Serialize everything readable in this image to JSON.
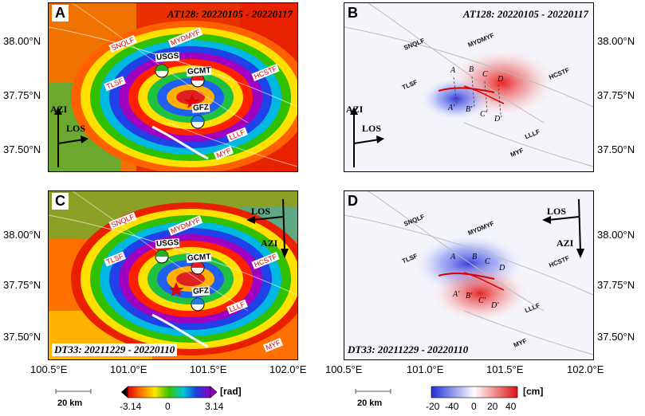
{
  "panels": {
    "a": {
      "label": "A",
      "title": "AT128: 20220105 - 20220117"
    },
    "b": {
      "label": "B",
      "title": "AT128: 20220105 - 20220117"
    },
    "c": {
      "label": "C",
      "title": "DT33: 20211229 - 20220110"
    },
    "d": {
      "label": "D",
      "title": "DT33: 20211229 - 20220110"
    }
  },
  "axes": {
    "lat_ticks": [
      "38.00°N",
      "37.75°N",
      "37.50°N"
    ],
    "lon_ticks": [
      "100.5°E",
      "101.0°E",
      "101.5°E",
      "102.0°E"
    ]
  },
  "faults": [
    "SNQLF",
    "MYDMYF",
    "HCSTF",
    "TLSF",
    "LLLF",
    "MYF"
  ],
  "mechanisms": [
    "USGS",
    "GCMT",
    "GFZ"
  ],
  "profiles": {
    "top": [
      "A",
      "B",
      "C",
      "D"
    ],
    "bottom": [
      "A'",
      "B'",
      "C'",
      "D'"
    ]
  },
  "arrows": {
    "azi": "AZI",
    "los": "LOS"
  },
  "scalebar": "20 km",
  "colorbar_wrapped": {
    "unit": "[rad]",
    "ticks": [
      "-3.14",
      "0",
      "3.14"
    ]
  },
  "colorbar_disp": {
    "unit": "[cm]",
    "ticks": [
      "-20",
      "-40",
      "0",
      "20",
      "40"
    ]
  },
  "colors": {
    "fault_label_red": "#dd0000",
    "rupture": "#e00000",
    "epicenter": "#e00000"
  }
}
